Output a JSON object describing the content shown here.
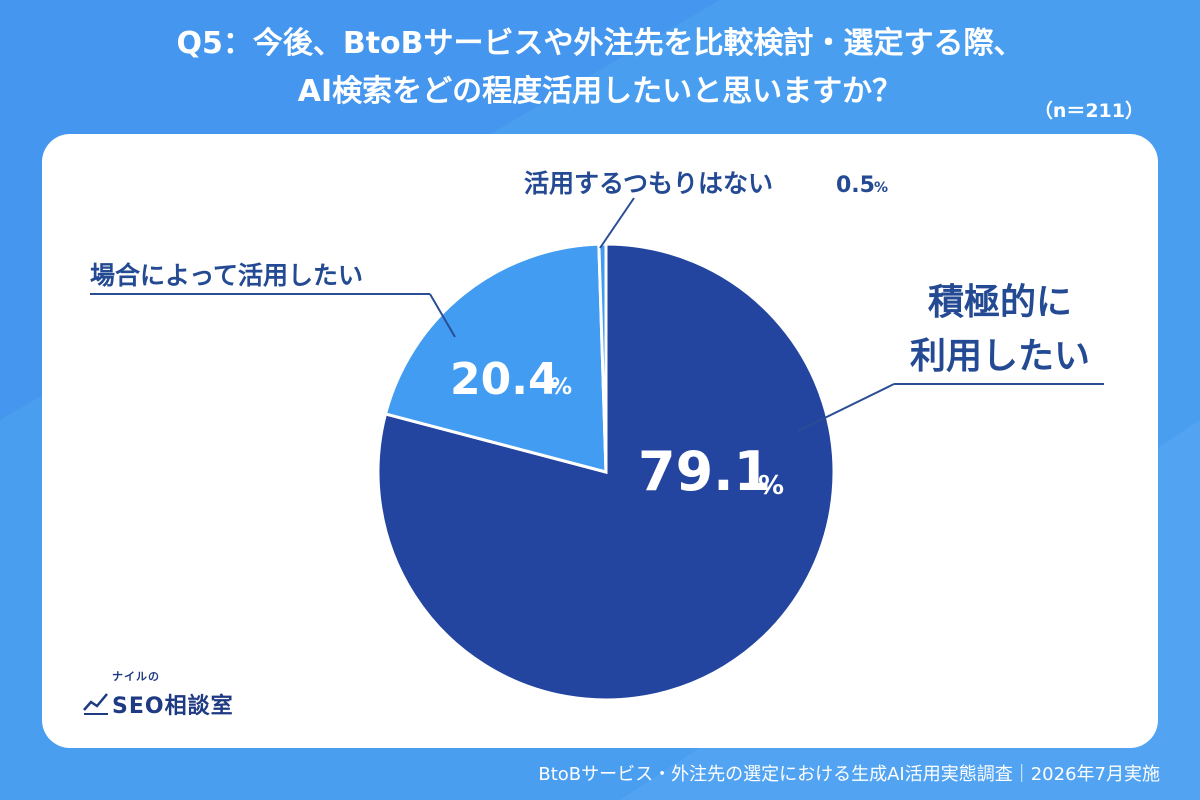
{
  "title": {
    "line1": "Q5：今後、BtoBサービスや外注先を比較検討・選定する際、",
    "line2": "AI検索をどの程度活用したいと思いますか？"
  },
  "sample_size": "（n＝211）",
  "footer": "BtoBサービス・外注先の選定における生成AI活用実態調査｜2026年7月実施",
  "logo": {
    "small": "ナイルの",
    "main": "SEO相談室"
  },
  "colors": {
    "background": "#4a9ef0",
    "slice_primary": "#2345a0",
    "slice_secondary": "#429cf2",
    "label_text": "#234a92",
    "leader": "#2a4d94"
  },
  "chart_data": {
    "type": "pie",
    "categories": [
      "積極的に利用したい",
      "場合によって活用したい",
      "活用するつもりはない"
    ],
    "values": [
      79.1,
      20.4,
      0.5
    ],
    "unit": "%",
    "labels": {
      "slice1_line1": "積極的に",
      "slice1_line2": "利用したい",
      "slice1_value": "79.1",
      "slice2": "場合によって活用したい",
      "slice2_value": "20.4",
      "slice3": "活用するつもりはない",
      "slice3_value": "0.5",
      "percent": "%"
    }
  }
}
